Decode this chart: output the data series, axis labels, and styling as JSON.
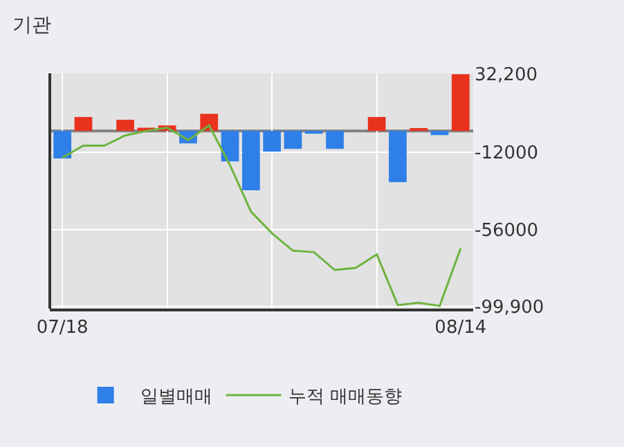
{
  "chart_data": {
    "type": "bar",
    "title": "기관",
    "categories": [
      "07/18",
      null,
      null,
      null,
      null,
      null,
      null,
      null,
      null,
      null,
      null,
      null,
      null,
      null,
      null,
      null,
      null,
      null,
      null,
      "08/14"
    ],
    "series": [
      {
        "name": "일별매매",
        "colors": [
          "#2f7fe8",
          "#e8321e",
          "#e8321e",
          "#e8321e",
          "#e8321e",
          "#e8321e",
          "#2f7fe8",
          "#e8321e",
          "#2f7fe8",
          "#2f7fe8",
          "#2f7fe8",
          "#2f7fe8",
          "#2f7fe8",
          "#2f7fe8",
          "#e8321e",
          "#e8321e",
          "#2f7fe8",
          "#e8321e",
          "#2f7fe8",
          "#e8321e"
        ],
        "values": [
          -15700,
          7900,
          0,
          6300,
          1800,
          3100,
          -7100,
          9700,
          -17300,
          -33800,
          -11800,
          -10200,
          -1600,
          -10200,
          0,
          7900,
          -29100,
          1600,
          -2400,
          32200
        ]
      },
      {
        "type": "line",
        "name": "누적 매매동향",
        "color": "#6db33f",
        "values": [
          -15200,
          -8400,
          -8400,
          -2600,
          0,
          1800,
          -5200,
          3100,
          -19600,
          -45900,
          -58200,
          -68100,
          -68900,
          -79100,
          -77800,
          -70200,
          -99000,
          -97700,
          -99500,
          -66800
        ]
      }
    ],
    "ylim": [
      -101000,
      32700
    ],
    "yticks": [
      {
        "value": 32200,
        "label": "32,200"
      },
      -12000,
      -56000,
      {
        "value": -99900,
        "label": "-99,900"
      }
    ],
    "ref_lines": [
      {
        "axis": "y",
        "value": 0,
        "color": "#808080"
      }
    ],
    "grid": true,
    "legend": "bottom"
  }
}
